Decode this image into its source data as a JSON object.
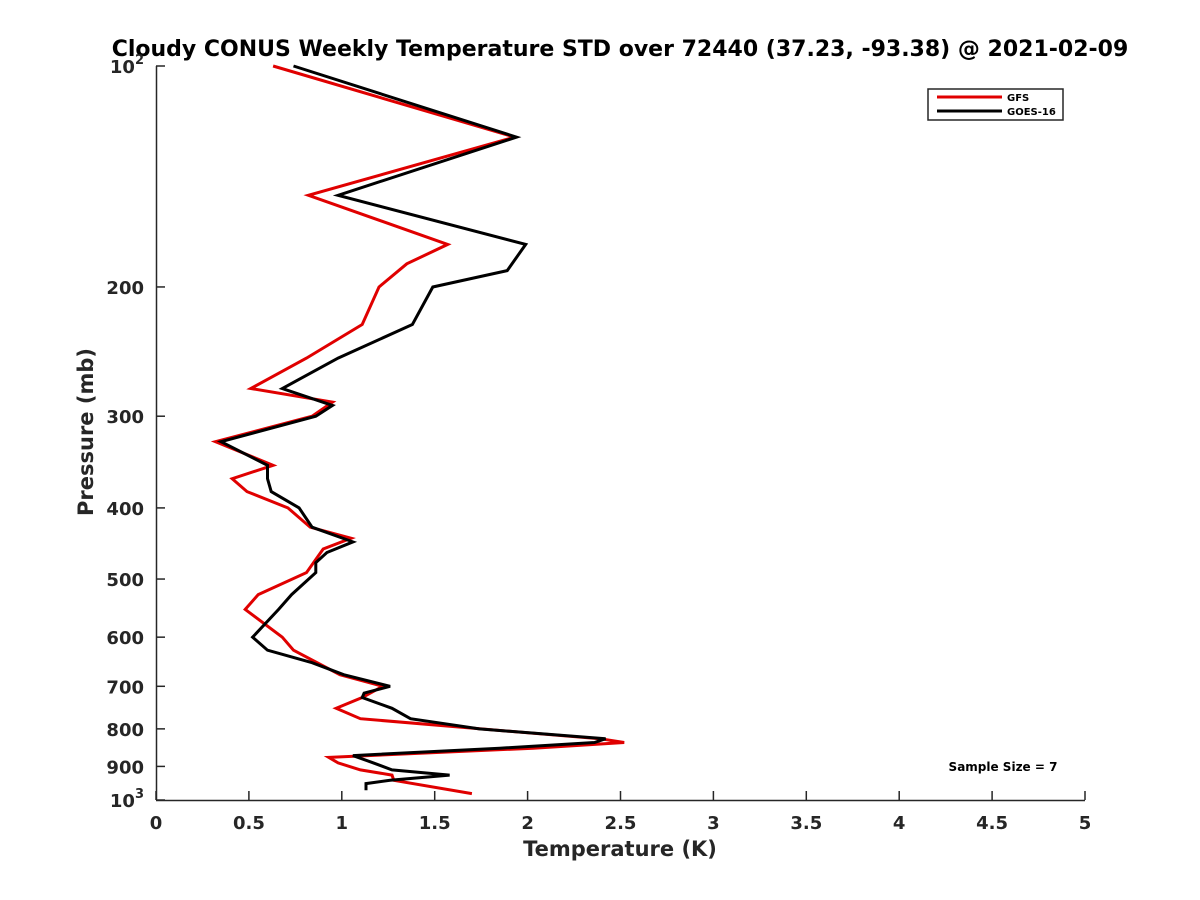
{
  "chart_data": {
    "type": "line",
    "title": "Cloudy CONUS Weekly Temperature STD over 72440 (37.23, -93.38) @ 2021-02-09",
    "xlabel": "Temperature (K)",
    "ylabel": "Pressure (mb)",
    "xlim": [
      0,
      5
    ],
    "ylim": [
      100,
      1000
    ],
    "y_scale": "log",
    "y_reversed": true,
    "grid": false,
    "legend_position": "top-right",
    "x_ticks": [
      {
        "value": 0,
        "label": "0"
      },
      {
        "value": 0.5,
        "label": "0.5"
      },
      {
        "value": 1,
        "label": "1"
      },
      {
        "value": 1.5,
        "label": "1.5"
      },
      {
        "value": 2,
        "label": "2"
      },
      {
        "value": 2.5,
        "label": "2.5"
      },
      {
        "value": 3,
        "label": "3"
      },
      {
        "value": 3.5,
        "label": "3.5"
      },
      {
        "value": 4,
        "label": "4"
      },
      {
        "value": 4.5,
        "label": "4.5"
      },
      {
        "value": 5,
        "label": "5"
      }
    ],
    "y_ticks": [
      {
        "value": 100,
        "base": "10",
        "exp": "2"
      },
      {
        "value": 200,
        "label": "200"
      },
      {
        "value": 300,
        "label": "300"
      },
      {
        "value": 400,
        "label": "400"
      },
      {
        "value": 500,
        "label": "500"
      },
      {
        "value": 600,
        "label": "600"
      },
      {
        "value": 700,
        "label": "700"
      },
      {
        "value": 800,
        "label": "800"
      },
      {
        "value": 900,
        "label": "900"
      },
      {
        "value": 1000,
        "base": "10",
        "exp": "3"
      }
    ],
    "series": [
      {
        "name": "GFS",
        "color": "#e00000",
        "points": [
          [
            0.63,
            100
          ],
          [
            1.93,
            125
          ],
          [
            0.82,
            150
          ],
          [
            1.57,
            175
          ],
          [
            1.35,
            186
          ],
          [
            1.2,
            200
          ],
          [
            1.11,
            225
          ],
          [
            0.81,
            250
          ],
          [
            0.51,
            275
          ],
          [
            0.95,
            287
          ],
          [
            0.84,
            300
          ],
          [
            0.32,
            325
          ],
          [
            0.63,
            350
          ],
          [
            0.41,
            365
          ],
          [
            0.49,
            380
          ],
          [
            0.71,
            400
          ],
          [
            0.83,
            425
          ],
          [
            1.05,
            440
          ],
          [
            0.9,
            455
          ],
          [
            0.81,
            490
          ],
          [
            0.55,
            525
          ],
          [
            0.48,
            550
          ],
          [
            0.68,
            600
          ],
          [
            0.74,
            625
          ],
          [
            0.99,
            675
          ],
          [
            1.22,
            700
          ],
          [
            1.11,
            725
          ],
          [
            0.97,
            750
          ],
          [
            1.1,
            775
          ],
          [
            1.75,
            800
          ],
          [
            2.39,
            825
          ],
          [
            2.52,
            835
          ],
          [
            2.03,
            850
          ],
          [
            0.93,
            875
          ],
          [
            0.98,
            890
          ],
          [
            1.1,
            910
          ],
          [
            1.27,
            925
          ],
          [
            1.28,
            940
          ],
          [
            1.7,
            980
          ]
        ]
      },
      {
        "name": "GOES-16",
        "color": "#000000",
        "points": [
          [
            0.74,
            100
          ],
          [
            1.94,
            125
          ],
          [
            0.98,
            150
          ],
          [
            1.99,
            175
          ],
          [
            1.89,
            190
          ],
          [
            1.49,
            200
          ],
          [
            1.38,
            225
          ],
          [
            0.98,
            250
          ],
          [
            0.68,
            275
          ],
          [
            0.95,
            290
          ],
          [
            0.86,
            300
          ],
          [
            0.35,
            325
          ],
          [
            0.6,
            350
          ],
          [
            0.6,
            365
          ],
          [
            0.62,
            380
          ],
          [
            0.77,
            400
          ],
          [
            0.84,
            425
          ],
          [
            1.06,
            445
          ],
          [
            0.92,
            460
          ],
          [
            0.86,
            475
          ],
          [
            0.86,
            490
          ],
          [
            0.73,
            525
          ],
          [
            0.66,
            550
          ],
          [
            0.52,
            600
          ],
          [
            0.6,
            625
          ],
          [
            0.84,
            650
          ],
          [
            1.01,
            675
          ],
          [
            1.26,
            700
          ],
          [
            1.12,
            715
          ],
          [
            1.11,
            725
          ],
          [
            1.27,
            750
          ],
          [
            1.37,
            775
          ],
          [
            1.74,
            800
          ],
          [
            2.42,
            825
          ],
          [
            2.36,
            835
          ],
          [
            1.85,
            850
          ],
          [
            1.06,
            870
          ],
          [
            1.17,
            890
          ],
          [
            1.27,
            910
          ],
          [
            1.58,
            925
          ],
          [
            1.26,
            940
          ],
          [
            1.13,
            950
          ],
          [
            1.13,
            970
          ]
        ]
      }
    ],
    "annotation": "Sample Size = 7"
  }
}
